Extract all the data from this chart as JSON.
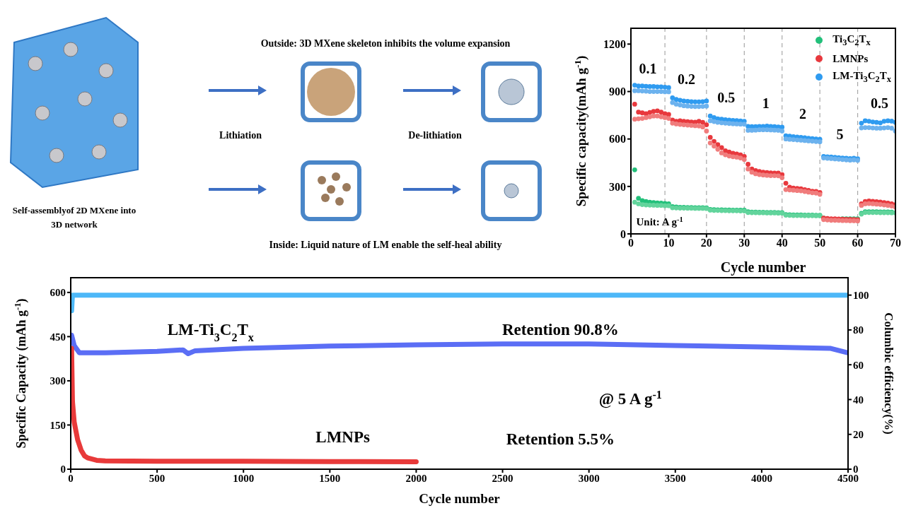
{
  "chart_data": [
    {
      "type": "other",
      "annotations": [
        "Outside: 3D MXene skeleton inhibits the volume expansion",
        "Lithiation",
        "De-lithiation",
        "Inside: Liquid nature of LM enable the self-heal ability",
        "Self-assemblyof 2D MXene into 3D network"
      ]
    },
    {
      "type": "scatter",
      "xlabel": "Cycle  number",
      "ylabel": "Specific capacity(mAh g$^{-1}$)",
      "xlim": [
        0,
        70
      ],
      "xticks": [
        0,
        10,
        20,
        30,
        40,
        50,
        60,
        70
      ],
      "ylim": [
        0,
        1300
      ],
      "yticks": [
        0,
        300,
        600,
        900,
        1200
      ],
      "marker": "circle",
      "legend": "top right",
      "x": [
        1,
        2,
        3,
        4,
        5,
        6,
        7,
        8,
        9,
        10,
        11,
        12,
        13,
        14,
        15,
        16,
        17,
        18,
        19,
        20,
        21,
        22,
        23,
        24,
        25,
        26,
        27,
        28,
        29,
        30,
        31,
        32,
        33,
        34,
        35,
        36,
        37,
        38,
        39,
        40,
        41,
        42,
        43,
        44,
        45,
        46,
        47,
        48,
        49,
        50,
        51,
        52,
        53,
        54,
        55,
        56,
        57,
        58,
        59,
        60,
        61,
        62,
        63,
        64,
        65,
        66,
        67,
        68,
        69,
        70
      ],
      "series": [
        {
          "name": "Ti$_{3}$C$_{2}$T$_{x}$",
          "color": "#22c07a",
          "values": [
            405,
            225,
            210,
            205,
            200,
            198,
            196,
            195,
            193,
            190,
            172,
            170,
            168,
            168,
            167,
            167,
            166,
            166,
            166,
            165,
            155,
            153,
            152,
            152,
            151,
            151,
            150,
            150,
            150,
            150,
            140,
            138,
            138,
            137,
            137,
            136,
            136,
            136,
            135,
            135,
            122,
            121,
            120,
            120,
            120,
            119,
            119,
            119,
            118,
            118,
            100,
            null,
            null,
            null,
            null,
            95,
            95,
            95,
            95,
            95,
            130,
            140,
            140,
            140,
            140,
            139,
            139,
            139,
            138,
            null
          ]
        },
        {
          "color": "#62d49c",
          "values": [
            200,
            190,
            185,
            183,
            182,
            181,
            180,
            180,
            178,
            178,
            165,
            164,
            163,
            163,
            162,
            162,
            161,
            161,
            161,
            160,
            150,
            148,
            148,
            147,
            147,
            146,
            146,
            146,
            145,
            145,
            135,
            134,
            134,
            133,
            133,
            132,
            132,
            132,
            131,
            131,
            118,
            117,
            116,
            116,
            116,
            115,
            115,
            115,
            114,
            114,
            null,
            null,
            null,
            null,
            null,
            null,
            null,
            null,
            91,
            91,
            125,
            135,
            135,
            135,
            135,
            134,
            134,
            134,
            133,
            133
          ]
        },
        {
          "name": "LMNPs",
          "color": "#e8383d",
          "values": [
            820,
            770,
            765,
            760,
            768,
            775,
            778,
            770,
            760,
            755,
            720,
            712,
            715,
            712,
            710,
            708,
            706,
            712,
            705,
            690,
            610,
            585,
            565,
            545,
            525,
            518,
            510,
            505,
            500,
            490,
            440,
            410,
            400,
            395,
            390,
            388,
            386,
            385,
            385,
            375,
            320,
            295,
            290,
            288,
            285,
            280,
            275,
            270,
            268,
            262,
            100,
            98,
            95,
            95,
            94,
            93,
            92,
            92,
            91,
            90,
            190,
            205,
            208,
            206,
            204,
            202,
            198,
            195,
            190,
            185
          ]
        },
        {
          "color": "#f07c7c",
          "values": [
            725,
            728,
            730,
            735,
            740,
            745,
            745,
            740,
            735,
            730,
            700,
            695,
            692,
            690,
            688,
            686,
            684,
            682,
            676,
            650,
            575,
            555,
            535,
            512,
            500,
            492,
            488,
            485,
            480,
            470,
            410,
            390,
            380,
            375,
            372,
            370,
            368,
            368,
            367,
            355,
            280,
            278,
            276,
            274,
            272,
            268,
            264,
            260,
            258,
            250,
            90,
            88,
            86,
            86,
            85,
            84,
            84,
            83,
            83,
            82,
            180,
            190,
            192,
            190,
            188,
            186,
            183,
            180,
            176,
            170
          ]
        },
        {
          "name": "LM-Ti$_{3}$C$_{2}$T$_{x}$",
          "color": "#2f9bf0",
          "values": [
            940,
            935,
            935,
            933,
            932,
            932,
            930,
            930,
            928,
            925,
            860,
            850,
            845,
            840,
            838,
            836,
            835,
            835,
            836,
            840,
            745,
            735,
            728,
            725,
            722,
            720,
            718,
            716,
            714,
            712,
            680,
            678,
            678,
            680,
            680,
            682,
            680,
            678,
            676,
            675,
            620,
            618,
            615,
            612,
            610,
            608,
            605,
            602,
            600,
            598,
            490,
            488,
            486,
            484,
            482,
            480,
            478,
            476,
            478,
            475,
            700,
            715,
            712,
            708,
            705,
            702,
            712,
            715,
            713,
            705
          ]
        },
        {
          "color": "#6cb2ee",
          "values": [
            905,
            905,
            903,
            902,
            900,
            900,
            900,
            900,
            898,
            898,
            830,
            820,
            815,
            810,
            808,
            806,
            805,
            805,
            806,
            808,
            715,
            710,
            705,
            702,
            700,
            698,
            696,
            695,
            694,
            693,
            655,
            655,
            656,
            658,
            658,
            658,
            657,
            656,
            655,
            650,
            600,
            598,
            596,
            594,
            592,
            590,
            588,
            586,
            584,
            582,
            480,
            478,
            476,
            474,
            472,
            470,
            468,
            466,
            468,
            465,
            670,
            672,
            672,
            670,
            668,
            668,
            670,
            672,
            668,
            650
          ]
        }
      ],
      "ref_lines": [
        {
          "axis": "x",
          "value": 9,
          "color": "#a8a8a8",
          "line_style": "dashed"
        },
        {
          "axis": "x",
          "value": 20,
          "color": "#a8a8a8",
          "line_style": "dashed"
        },
        {
          "axis": "x",
          "value": 30,
          "color": "#a8a8a8",
          "line_style": "dashed"
        },
        {
          "axis": "x",
          "value": 40,
          "color": "#a8a8a8",
          "line_style": "dashed"
        },
        {
          "axis": "x",
          "value": 50,
          "color": "#a8a8a8",
          "line_style": "dashed"
        },
        {
          "axis": "x",
          "value": 60,
          "color": "#a8a8a8",
          "line_style": "dashed"
        }
      ],
      "annotations": [
        "0.1",
        "0.2",
        "0.5",
        "1",
        "2",
        "5",
        "0.5",
        "Unit: A g$^{-1}$"
      ]
    },
    {
      "type": "line",
      "xlabel": "Cycle number",
      "ylabel": "Specific Capacity (mAh g$^{-1}$)",
      "y2label": "Columbic efficiency(%)",
      "xlim": [
        0,
        4500
      ],
      "xticks": [
        0,
        500,
        1000,
        1500,
        2000,
        2500,
        3000,
        3500,
        4000,
        4500
      ],
      "ylim": [
        0,
        650
      ],
      "yticks": [
        0,
        150,
        300,
        450,
        600
      ],
      "y2lim": [
        0,
        110
      ],
      "y2ticks": [
        0,
        20,
        40,
        60,
        80,
        100
      ],
      "marker": "none",
      "series": [
        {
          "axis": "y2",
          "color": "#4db8f8",
          "x": [
            5,
            10,
            250,
            500,
            750,
            1000,
            1500,
            2000,
            2500,
            3000,
            3500,
            4000,
            4500
          ],
          "values": [
            91,
            100,
            100,
            100,
            100,
            100,
            100,
            100,
            100,
            100,
            100,
            100,
            100
          ]
        },
        {
          "name": "LM-Ti$_{3}$C$_{2}$T$_{x}$",
          "color": "#5b6ef5",
          "x": [
            5,
            20,
            50,
            200,
            500,
            650,
            680,
            720,
            1000,
            1500,
            2000,
            2500,
            3000,
            3500,
            4000,
            4400,
            4500
          ],
          "values": [
            455,
            420,
            395,
            395,
            400,
            405,
            392,
            402,
            410,
            418,
            422,
            425,
            425,
            420,
            415,
            410,
            395
          ]
        },
        {
          "name": "LMNPs",
          "color": "#e83a3a",
          "x": [
            5,
            10,
            20,
            40,
            60,
            80,
            100,
            150,
            200,
            500,
            1000,
            1500,
            2000
          ],
          "values": [
            410,
            230,
            160,
            100,
            65,
            45,
            38,
            30,
            28,
            27,
            27,
            26,
            25
          ]
        }
      ],
      "annotations": [
        "Retention 90.8%",
        "@ 5 A g$^{-1}$",
        "Retention 5.5%"
      ]
    }
  ]
}
